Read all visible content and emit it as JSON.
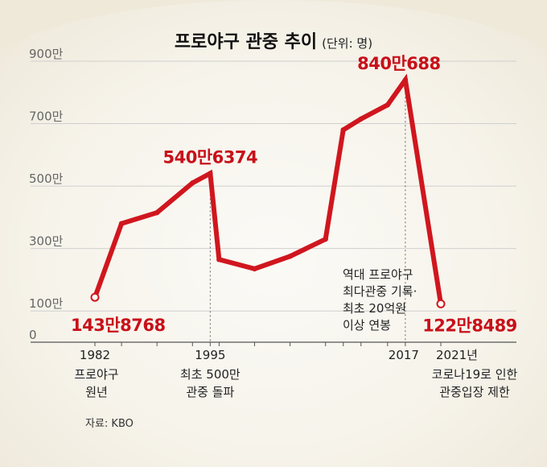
{
  "header": {
    "title": "프로야구 관중 추이",
    "unit": "(단위: 명)"
  },
  "footer": {
    "source": "자료: KBO"
  },
  "colors": {
    "line": "#d0161e",
    "callout": "#c8101a",
    "axis_text": "#666666",
    "grid": "#cfcfcf",
    "background": "#f7f5ee"
  },
  "chart_data": {
    "type": "line",
    "title": "프로야구 관중 추이",
    "subtitle": "(단위: 명)",
    "y_unit": "만",
    "ylim": [
      0,
      900
    ],
    "yticks": [
      0,
      100,
      300,
      500,
      700,
      900
    ],
    "ytick_labels": [
      "0",
      "100만",
      "300만",
      "500만",
      "700만",
      "900만"
    ],
    "grid": true,
    "x": [
      1982,
      1985,
      1989,
      1993,
      1995,
      1996,
      2000,
      2004,
      2008,
      2010,
      2012,
      2015,
      2017,
      2021
    ],
    "values": [
      143.8768,
      380,
      415,
      510,
      540.6374,
      265,
      235,
      275,
      330,
      680,
      715,
      760,
      840.0688,
      122.8489
    ],
    "labeled_points": [
      {
        "x": 1982,
        "label": "143만8768"
      },
      {
        "x": 1995,
        "label": "540만6374"
      },
      {
        "x": 2017,
        "label": "840만688"
      },
      {
        "x": 2021,
        "label": "122만8489"
      }
    ],
    "x_annotations": [
      {
        "x": 1982,
        "year": "1982",
        "lines": [
          "프로야구",
          "원년"
        ]
      },
      {
        "x": 1995,
        "year": "1995",
        "lines": [
          "최초 500만",
          "관중 돌파"
        ]
      },
      {
        "x": 2017,
        "year": "2017",
        "lines": []
      },
      {
        "x": 2021,
        "year": "2021년",
        "lines": [
          "코로나19로 인한",
          "관중입장 제한"
        ]
      }
    ],
    "note_2017": [
      "역대 프로야구",
      "최다관중 기록·",
      "최초 20억원",
      "이상 연봉"
    ]
  }
}
